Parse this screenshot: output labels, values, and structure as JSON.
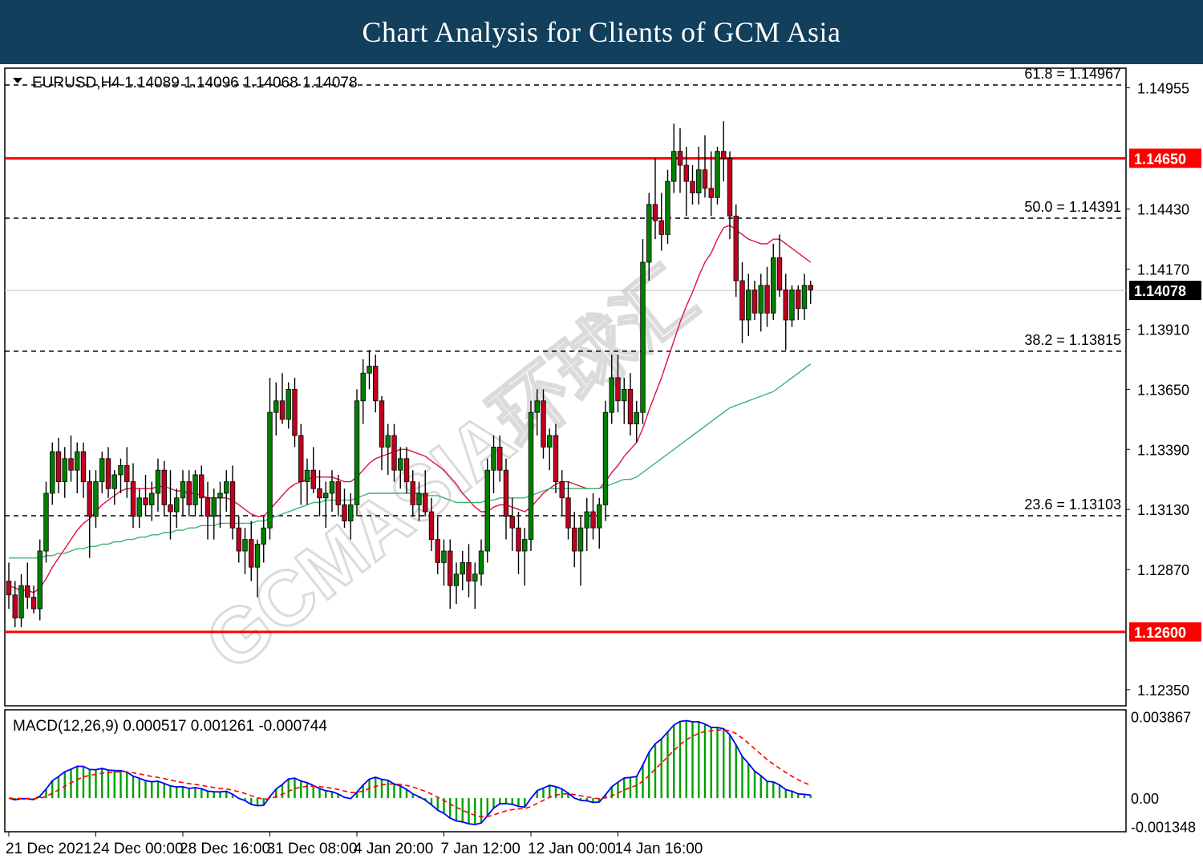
{
  "banner": {
    "title": "Chart Analysis for Clients of GCM Asia"
  },
  "chart_data": {
    "type": "candlestick",
    "symbol_header": "EURUSD,H4  1.14089 1.14096 1.14068 1.14078",
    "ohlc": {
      "open": 1.14089,
      "high": 1.14096,
      "low": 1.14068,
      "close": 1.14078
    },
    "price_axis": {
      "range": [
        1.1228,
        1.1504
      ],
      "ticks": [
        "1.14955",
        "1.14430",
        "1.14170",
        "1.13910",
        "1.13650",
        "1.13390",
        "1.13130",
        "1.12870",
        "1.12350"
      ]
    },
    "current_price": {
      "label": "1.14078",
      "value": 1.14078,
      "color": "#000000"
    },
    "horizontal_levels": [
      {
        "label": "1.14650",
        "value": 1.1465,
        "color": "#ff0000"
      },
      {
        "label": "1.12600",
        "value": 1.126,
        "color": "#ff0000"
      }
    ],
    "fibonacci": [
      {
        "label": "61.8 = 1.14967",
        "value": 1.14967
      },
      {
        "label": "50.0 = 1.14391",
        "value": 1.14391
      },
      {
        "label": "38.2 = 1.13815",
        "value": 1.13815
      },
      {
        "label": "23.6 = 1.13103",
        "value": 1.13103
      }
    ],
    "time_axis": [
      "21 Dec 2021",
      "24 Dec 00:00",
      "28 Dec 16:00",
      "31 Dec 08:00",
      "4 Jan 20:00",
      "7 Jan 12:00",
      "12 Jan 00:00",
      "14 Jan 16:00"
    ],
    "time_axis_index": [
      0,
      14,
      28,
      42,
      56,
      70,
      84,
      98
    ],
    "candles": [
      [
        1.1282,
        1.129,
        1.127,
        1.1276
      ],
      [
        1.1276,
        1.1282,
        1.1262,
        1.1266
      ],
      [
        1.1266,
        1.1285,
        1.1262,
        1.128
      ],
      [
        1.128,
        1.129,
        1.127,
        1.1275
      ],
      [
        1.1275,
        1.128,
        1.1268,
        1.127
      ],
      [
        1.127,
        1.13,
        1.1265,
        1.1295
      ],
      [
        1.1295,
        1.1325,
        1.129,
        1.132
      ],
      [
        1.132,
        1.1342,
        1.1315,
        1.1338
      ],
      [
        1.1338,
        1.1344,
        1.132,
        1.1325
      ],
      [
        1.1325,
        1.134,
        1.1318,
        1.1335
      ],
      [
        1.1335,
        1.1345,
        1.1325,
        1.133
      ],
      [
        1.133,
        1.1342,
        1.132,
        1.1338
      ],
      [
        1.1338,
        1.1342,
        1.1318,
        1.1325
      ],
      [
        1.1325,
        1.133,
        1.1292,
        1.131
      ],
      [
        1.131,
        1.133,
        1.1305,
        1.1325
      ],
      [
        1.1325,
        1.1338,
        1.132,
        1.1335
      ],
      [
        1.1335,
        1.134,
        1.1318,
        1.1322
      ],
      [
        1.1322,
        1.133,
        1.1315,
        1.1328
      ],
      [
        1.1328,
        1.1335,
        1.132,
        1.1332
      ],
      [
        1.1332,
        1.134,
        1.1318,
        1.1325
      ],
      [
        1.1325,
        1.1333,
        1.1305,
        1.131
      ],
      [
        1.131,
        1.1322,
        1.1305,
        1.1318
      ],
      [
        1.1318,
        1.1328,
        1.131,
        1.1315
      ],
      [
        1.1315,
        1.1325,
        1.1308,
        1.132
      ],
      [
        1.132,
        1.1335,
        1.1312,
        1.133
      ],
      [
        1.133,
        1.1334,
        1.131,
        1.1315
      ],
      [
        1.1315,
        1.133,
        1.13,
        1.1312
      ],
      [
        1.1312,
        1.1322,
        1.1305,
        1.1318
      ],
      [
        1.1318,
        1.133,
        1.131,
        1.1325
      ],
      [
        1.1325,
        1.133,
        1.131,
        1.1315
      ],
      [
        1.1315,
        1.133,
        1.131,
        1.1328
      ],
      [
        1.1328,
        1.1332,
        1.131,
        1.1318
      ],
      [
        1.1318,
        1.1325,
        1.13,
        1.131
      ],
      [
        1.131,
        1.1322,
        1.13,
        1.1318
      ],
      [
        1.1318,
        1.1325,
        1.1305,
        1.132
      ],
      [
        1.132,
        1.133,
        1.1312,
        1.1325
      ],
      [
        1.1325,
        1.1332,
        1.13,
        1.1305
      ],
      [
        1.1305,
        1.131,
        1.129,
        1.1295
      ],
      [
        1.1295,
        1.1305,
        1.1285,
        1.13
      ],
      [
        1.13,
        1.1308,
        1.1282,
        1.1288
      ],
      [
        1.1288,
        1.13,
        1.1275,
        1.1298
      ],
      [
        1.1298,
        1.131,
        1.129,
        1.1305
      ],
      [
        1.1305,
        1.137,
        1.13,
        1.1355
      ],
      [
        1.1355,
        1.1368,
        1.1345,
        1.136
      ],
      [
        1.136,
        1.1372,
        1.135,
        1.1352
      ],
      [
        1.1352,
        1.1368,
        1.1348,
        1.1365
      ],
      [
        1.1365,
        1.137,
        1.134,
        1.1345
      ],
      [
        1.1345,
        1.135,
        1.1315,
        1.1325
      ],
      [
        1.1325,
        1.1335,
        1.1315,
        1.133
      ],
      [
        1.133,
        1.134,
        1.132,
        1.1322
      ],
      [
        1.1322,
        1.133,
        1.131,
        1.1318
      ],
      [
        1.1318,
        1.1325,
        1.1305,
        1.132
      ],
      [
        1.132,
        1.133,
        1.1312,
        1.1325
      ],
      [
        1.1325,
        1.1328,
        1.131,
        1.1315
      ],
      [
        1.1315,
        1.1322,
        1.1305,
        1.1308
      ],
      [
        1.1308,
        1.132,
        1.13,
        1.1315
      ],
      [
        1.1315,
        1.1365,
        1.131,
        1.136
      ],
      [
        1.136,
        1.1378,
        1.135,
        1.1372
      ],
      [
        1.1372,
        1.1382,
        1.1365,
        1.1375
      ],
      [
        1.1375,
        1.138,
        1.1355,
        1.136
      ],
      [
        1.136,
        1.1362,
        1.133,
        1.134
      ],
      [
        1.134,
        1.135,
        1.1328,
        1.1345
      ],
      [
        1.1345,
        1.135,
        1.1325,
        1.133
      ],
      [
        1.133,
        1.134,
        1.1322,
        1.1335
      ],
      [
        1.1335,
        1.134,
        1.132,
        1.1325
      ],
      [
        1.1325,
        1.133,
        1.131,
        1.1315
      ],
      [
        1.1315,
        1.1325,
        1.1308,
        1.132
      ],
      [
        1.132,
        1.133,
        1.131,
        1.1312
      ],
      [
        1.1312,
        1.1318,
        1.1295,
        1.13
      ],
      [
        1.13,
        1.131,
        1.1285,
        1.129
      ],
      [
        1.129,
        1.13,
        1.128,
        1.1295
      ],
      [
        1.1295,
        1.13,
        1.127,
        1.128
      ],
      [
        1.128,
        1.129,
        1.1272,
        1.1285
      ],
      [
        1.1285,
        1.1295,
        1.1278,
        1.129
      ],
      [
        1.129,
        1.1298,
        1.1275,
        1.1282
      ],
      [
        1.1282,
        1.129,
        1.127,
        1.1285
      ],
      [
        1.1285,
        1.13,
        1.128,
        1.1295
      ],
      [
        1.1295,
        1.1335,
        1.129,
        1.133
      ],
      [
        1.133,
        1.1345,
        1.132,
        1.134
      ],
      [
        1.134,
        1.1345,
        1.1325,
        1.133
      ],
      [
        1.133,
        1.1335,
        1.13,
        1.131
      ],
      [
        1.131,
        1.1318,
        1.1295,
        1.1305
      ],
      [
        1.1305,
        1.1312,
        1.1285,
        1.1295
      ],
      [
        1.1295,
        1.1305,
        1.128,
        1.13
      ],
      [
        1.13,
        1.136,
        1.1295,
        1.1355
      ],
      [
        1.1355,
        1.1365,
        1.1345,
        1.136
      ],
      [
        1.136,
        1.1365,
        1.1335,
        1.134
      ],
      [
        1.134,
        1.1348,
        1.133,
        1.1345
      ],
      [
        1.1345,
        1.135,
        1.132,
        1.1325
      ],
      [
        1.1325,
        1.133,
        1.131,
        1.1318
      ],
      [
        1.1318,
        1.1325,
        1.13,
        1.1305
      ],
      [
        1.1305,
        1.1312,
        1.1288,
        1.1295
      ],
      [
        1.1295,
        1.131,
        1.128,
        1.1305
      ],
      [
        1.1305,
        1.1318,
        1.1295,
        1.1312
      ],
      [
        1.1312,
        1.132,
        1.13,
        1.1305
      ],
      [
        1.1305,
        1.1318,
        1.1296,
        1.1315
      ],
      [
        1.1315,
        1.136,
        1.1308,
        1.1355
      ],
      [
        1.1355,
        1.138,
        1.135,
        1.137
      ],
      [
        1.137,
        1.138,
        1.1355,
        1.136
      ],
      [
        1.136,
        1.137,
        1.135,
        1.1365
      ],
      [
        1.1365,
        1.1372,
        1.1345,
        1.135
      ],
      [
        1.135,
        1.136,
        1.1342,
        1.1355
      ],
      [
        1.1355,
        1.143,
        1.135,
        1.142
      ],
      [
        1.142,
        1.145,
        1.1412,
        1.1445
      ],
      [
        1.1445,
        1.1465,
        1.143,
        1.1438
      ],
      [
        1.1438,
        1.145,
        1.1425,
        1.1432
      ],
      [
        1.1432,
        1.146,
        1.1428,
        1.1455
      ],
      [
        1.1455,
        1.148,
        1.145,
        1.1468
      ],
      [
        1.1468,
        1.1478,
        1.145,
        1.1462
      ],
      [
        1.1462,
        1.147,
        1.144,
        1.1455
      ],
      [
        1.1455,
        1.1462,
        1.1445,
        1.145
      ],
      [
        1.145,
        1.147,
        1.1445,
        1.146
      ],
      [
        1.146,
        1.1475,
        1.1448,
        1.1452
      ],
      [
        1.1452,
        1.1468,
        1.144,
        1.1448
      ],
      [
        1.1448,
        1.147,
        1.1445,
        1.1468
      ],
      [
        1.1468,
        1.1481,
        1.1455,
        1.1465
      ],
      [
        1.1465,
        1.1468,
        1.143,
        1.144
      ],
      [
        1.144,
        1.1445,
        1.1405,
        1.1412
      ],
      [
        1.1412,
        1.142,
        1.1385,
        1.1395
      ],
      [
        1.1395,
        1.1415,
        1.1388,
        1.1408
      ],
      [
        1.1408,
        1.1412,
        1.1395,
        1.1398
      ],
      [
        1.1398,
        1.1415,
        1.139,
        1.141
      ],
      [
        1.141,
        1.1418,
        1.1392,
        1.1398
      ],
      [
        1.1398,
        1.1428,
        1.1395,
        1.1422
      ],
      [
        1.1422,
        1.1432,
        1.1405,
        1.1408
      ],
      [
        1.1408,
        1.1415,
        1.1382,
        1.1395
      ],
      [
        1.1395,
        1.141,
        1.1392,
        1.1408
      ],
      [
        1.1408,
        1.141,
        1.1395,
        1.14
      ],
      [
        1.14,
        1.1415,
        1.1395,
        1.141
      ],
      [
        1.141,
        1.1412,
        1.1402,
        1.1408
      ]
    ],
    "moving_averages": [
      {
        "color": "#dc143c",
        "values": [
          1.128,
          1.1279,
          1.1278,
          1.1278,
          1.1277,
          1.1279,
          1.1283,
          1.1288,
          1.1292,
          1.1296,
          1.13,
          1.1304,
          1.1307,
          1.1309,
          1.1312,
          1.1315,
          1.1317,
          1.1319,
          1.1321,
          1.1322,
          1.1322,
          1.1322,
          1.1322,
          1.1322,
          1.1323,
          1.1323,
          1.1322,
          1.1321,
          1.1321,
          1.132,
          1.132,
          1.1319,
          1.1318,
          1.1318,
          1.1318,
          1.1318,
          1.1317,
          1.1315,
          1.1313,
          1.1311,
          1.131,
          1.131,
          1.1313,
          1.1316,
          1.1319,
          1.1322,
          1.1324,
          1.1325,
          1.1326,
          1.1327,
          1.1327,
          1.1327,
          1.1327,
          1.1326,
          1.1325,
          1.1325,
          1.1327,
          1.133,
          1.1333,
          1.1335,
          1.1336,
          1.1337,
          1.1338,
          1.1339,
          1.1339,
          1.1338,
          1.1337,
          1.1336,
          1.1334,
          1.1332,
          1.133,
          1.1327,
          1.1324,
          1.132,
          1.1317,
          1.1314,
          1.1312,
          1.1312,
          1.1314,
          1.1315,
          1.1315,
          1.1314,
          1.1313,
          1.1312,
          1.1314,
          1.1317,
          1.132,
          1.1322,
          1.1324,
          1.1325,
          1.1325,
          1.1324,
          1.1323,
          1.1322,
          1.1322,
          1.1322,
          1.1325,
          1.1329,
          1.1332,
          1.1336,
          1.1339,
          1.1342,
          1.1348,
          1.1356,
          1.1363,
          1.137,
          1.1378,
          1.1386,
          1.1394,
          1.1401,
          1.1407,
          1.1414,
          1.142,
          1.1424,
          1.143,
          1.1435,
          1.1436,
          1.1434,
          1.1432,
          1.143,
          1.1429,
          1.1428,
          1.1428,
          1.143,
          1.143,
          1.1428,
          1.1426,
          1.1424,
          1.1422,
          1.142
        ]
      },
      {
        "color": "#3cb371",
        "values": [
          1.1292,
          1.1292,
          1.1292,
          1.1292,
          1.1292,
          1.1292,
          1.1293,
          1.1293,
          1.1294,
          1.1294,
          1.1295,
          1.1296,
          1.1296,
          1.1297,
          1.1297,
          1.1298,
          1.1298,
          1.1299,
          1.1299,
          1.13,
          1.13,
          1.1301,
          1.1301,
          1.1302,
          1.1302,
          1.1303,
          1.1303,
          1.1304,
          1.1304,
          1.1305,
          1.1305,
          1.1306,
          1.1306,
          1.1306,
          1.1307,
          1.1307,
          1.1307,
          1.1307,
          1.1307,
          1.1307,
          1.1308,
          1.1308,
          1.1309,
          1.131,
          1.1311,
          1.1312,
          1.1313,
          1.1314,
          1.1315,
          1.1316,
          1.1316,
          1.1317,
          1.1317,
          1.1317,
          1.1317,
          1.1317,
          1.1318,
          1.1319,
          1.132,
          1.132,
          1.132,
          1.132,
          1.132,
          1.132,
          1.132,
          1.132,
          1.132,
          1.1319,
          1.1319,
          1.1319,
          1.1318,
          1.1317,
          1.1316,
          1.1316,
          1.1316,
          1.1316,
          1.1316,
          1.1317,
          1.1317,
          1.1318,
          1.1318,
          1.1318,
          1.1318,
          1.1318,
          1.1319,
          1.132,
          1.1321,
          1.1322,
          1.1322,
          1.1322,
          1.1322,
          1.1322,
          1.1322,
          1.1322,
          1.1322,
          1.1322,
          1.1323,
          1.1324,
          1.1325,
          1.1326,
          1.1326,
          1.1327,
          1.1329,
          1.1331,
          1.1333,
          1.1335,
          1.1337,
          1.1339,
          1.1341,
          1.1343,
          1.1345,
          1.1347,
          1.1349,
          1.1351,
          1.1353,
          1.1355,
          1.1357,
          1.1358,
          1.1359,
          1.136,
          1.1361,
          1.1362,
          1.1363,
          1.1364,
          1.1366,
          1.1368,
          1.137,
          1.1372,
          1.1374,
          1.1376
        ]
      }
    ],
    "macd": {
      "label": "MACD(12,26,9) 0.000517 0.001261 -0.000744",
      "range": [
        -0.0016,
        0.0042
      ],
      "ticks": [
        "0.003867",
        "0.00",
        "-0.001348"
      ],
      "tick_values": [
        0.003867,
        0.0,
        -0.001348
      ],
      "zero_value": 0.0,
      "histogram_color": "#00a000",
      "main_color": "#0000ff",
      "signal_color": "#ff0000"
    }
  }
}
